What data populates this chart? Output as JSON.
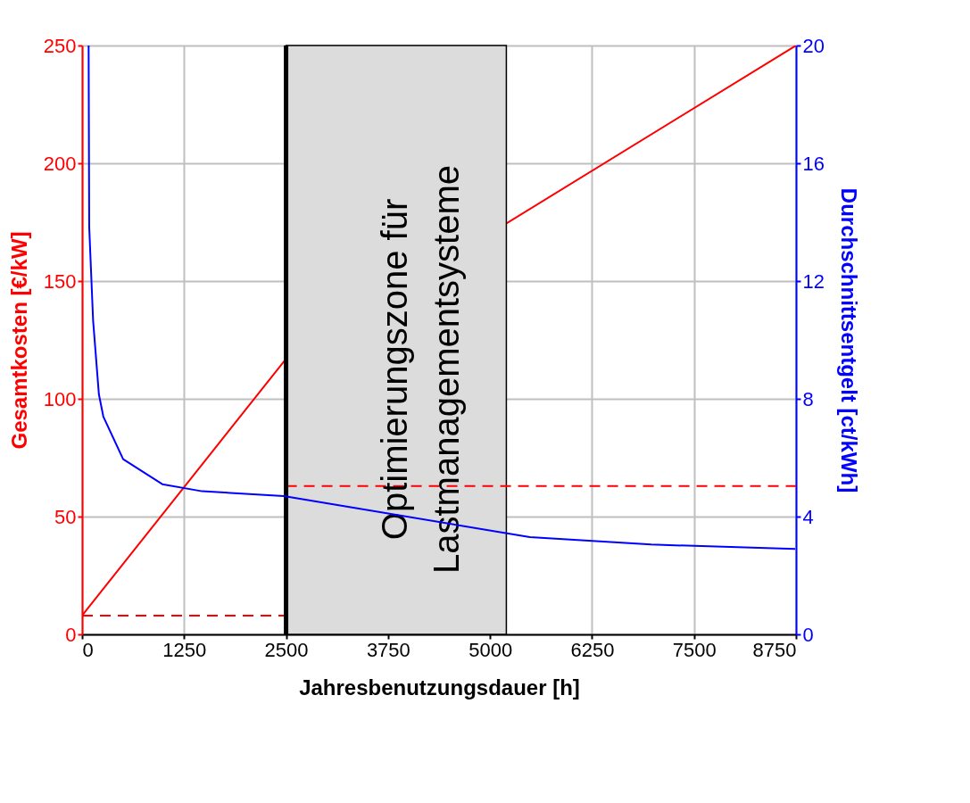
{
  "chart_data": {
    "type": "line",
    "xlabel": "Jahresbenutzungsdauer [h]",
    "ylabel": "Gesamtkosten [€/kW]",
    "y2label": "Durchschnittsentgelt [ct/kWh]",
    "xlim": [
      0,
      8750
    ],
    "xticks": [
      0,
      1250,
      2500,
      3750,
      5000,
      6250,
      7500,
      8750
    ],
    "ylim": [
      0,
      250
    ],
    "yticks": [
      0,
      50,
      100,
      150,
      200,
      250
    ],
    "y2lim": [
      0,
      20
    ],
    "y2ticks": [
      0,
      4,
      8,
      12,
      16,
      20
    ],
    "grid": true,
    "series": [
      {
        "color": "#ff0000",
        "x": [
          0,
          2500,
          8750
        ],
        "values": [
          8,
          117,
          250
        ]
      },
      {
        "color": "#ff0000",
        "line_style": "dashed",
        "x": [
          0,
          2500
        ],
        "values": [
          8,
          8
        ]
      },
      {
        "color": "#ff0000",
        "line_style": "dashed",
        "x": [
          2500,
          8750
        ],
        "values": [
          63,
          63
        ]
      },
      {
        "color": "#0000ff",
        "axis": "y2",
        "x": [
          80,
          87,
          135,
          206,
          260,
          503,
          983,
          1472,
          2472,
          5488,
          6975,
          8740
        ],
        "values": [
          20,
          13.85,
          10.66,
          8.15,
          7.4,
          5.95,
          5.1,
          4.86,
          4.7,
          3.3,
          3.05,
          2.9
        ]
      }
    ],
    "ref_lines": [
      {
        "axis": "x",
        "value": 2500,
        "color": "#000000"
      }
    ],
    "bands": [
      {
        "axis": "x",
        "from": 2500,
        "to": 5200,
        "color": "#dcdcdc",
        "label": "Optimierungszone für\nLastmanagementsysteme"
      }
    ]
  }
}
